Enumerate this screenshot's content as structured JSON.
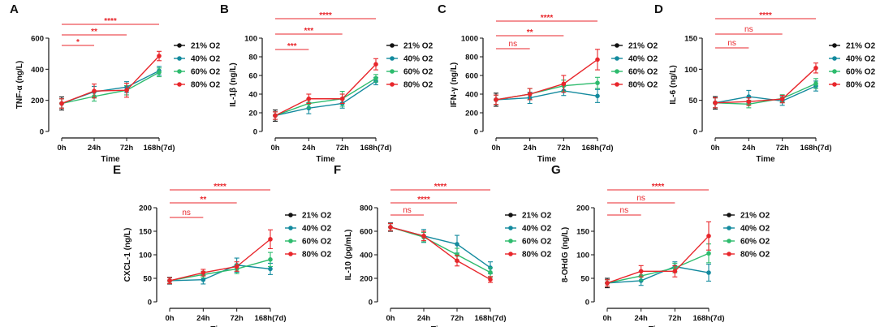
{
  "series_names": [
    "21% O2",
    "40% O2",
    "60% O2",
    "80% O2"
  ],
  "series_colors": [
    "#111111",
    "#138a9e",
    "#2dbb6d",
    "#e8262b"
  ],
  "sig_color": "#e8262b",
  "chart_data": [
    {
      "type": "line",
      "panel": "A",
      "ylabel": "TNF-α (ng/L)",
      "xlabel": "Time",
      "categories": [
        "0h",
        "24h",
        "72h",
        "168h(7d)"
      ],
      "ylim": [
        0,
        600
      ],
      "yticks": [
        0,
        200,
        400,
        600
      ],
      "series": [
        {
          "name": "21% O2",
          "values": [
            180,
            null,
            null,
            null
          ],
          "errors": [
            42,
            null,
            null,
            null
          ]
        },
        {
          "name": "40% O2",
          "values": [
            180,
            255,
            285,
            390
          ],
          "errors": [
            30,
            35,
            35,
            28
          ]
        },
        {
          "name": "60% O2",
          "values": [
            180,
            225,
            265,
            380
          ],
          "errors": [
            30,
            30,
            30,
            28
          ]
        },
        {
          "name": "80% O2",
          "values": [
            180,
            260,
            265,
            485
          ],
          "errors": [
            30,
            45,
            45,
            30
          ]
        }
      ],
      "significance": [
        {
          "from": 0,
          "to": 3,
          "label": "****"
        },
        {
          "from": 0,
          "to": 2,
          "label": "**"
        },
        {
          "from": 0,
          "to": 1,
          "label": "*"
        }
      ]
    },
    {
      "type": "line",
      "panel": "B",
      "ylabel": "IL-1β (ng/L)",
      "xlabel": "Time",
      "categories": [
        "0h",
        "24h",
        "72h",
        "168h(7d)"
      ],
      "ylim": [
        0,
        100
      ],
      "yticks": [
        0,
        20,
        40,
        60,
        80,
        100
      ],
      "series": [
        {
          "name": "21% O2",
          "values": [
            17,
            null,
            null,
            null
          ],
          "errors": [
            6,
            null,
            null,
            null
          ]
        },
        {
          "name": "40% O2",
          "values": [
            17,
            25,
            30,
            54
          ],
          "errors": [
            4,
            6,
            5,
            4
          ]
        },
        {
          "name": "60% O2",
          "values": [
            17,
            30,
            35,
            57
          ],
          "errors": [
            4,
            5,
            8,
            4
          ]
        },
        {
          "name": "80% O2",
          "values": [
            17,
            35,
            35,
            72
          ],
          "errors": [
            4,
            5,
            5,
            6
          ]
        }
      ],
      "significance": [
        {
          "from": 0,
          "to": 3,
          "label": "****"
        },
        {
          "from": 0,
          "to": 2,
          "label": "***"
        },
        {
          "from": 0,
          "to": 1,
          "label": "***"
        }
      ]
    },
    {
      "type": "line",
      "panel": "C",
      "ylabel": "IFN-γ (ng/L)",
      "xlabel": "Time",
      "categories": [
        "0h",
        "24h",
        "72h",
        "168h(7d)"
      ],
      "ylim": [
        0,
        1000
      ],
      "yticks": [
        0,
        200,
        400,
        600,
        800,
        1000
      ],
      "series": [
        {
          "name": "21% O2",
          "values": [
            340,
            null,
            null,
            null
          ],
          "errors": [
            70,
            null,
            null,
            null
          ]
        },
        {
          "name": "40% O2",
          "values": [
            340,
            360,
            435,
            380
          ],
          "errors": [
            50,
            60,
            50,
            70
          ]
        },
        {
          "name": "60% O2",
          "values": [
            340,
            400,
            490,
            520
          ],
          "errors": [
            50,
            60,
            60,
            60
          ]
        },
        {
          "name": "80% O2",
          "values": [
            340,
            400,
            510,
            770
          ],
          "errors": [
            50,
            60,
            90,
            110
          ]
        }
      ],
      "significance": [
        {
          "from": 0,
          "to": 3,
          "label": "****"
        },
        {
          "from": 0,
          "to": 2,
          "label": "**"
        },
        {
          "from": 0,
          "to": 1,
          "label": "ns"
        }
      ]
    },
    {
      "type": "line",
      "panel": "D",
      "ylabel": "IL-6 (ng/L)",
      "xlabel": "Time",
      "categories": [
        "0h",
        "24h",
        "72h",
        "168h(7d)"
      ],
      "ylim": [
        0,
        150
      ],
      "yticks": [
        0,
        50,
        100,
        150
      ],
      "series": [
        {
          "name": "21% O2",
          "values": [
            46,
            null,
            null,
            null
          ],
          "errors": [
            10,
            null,
            null,
            null
          ]
        },
        {
          "name": "40% O2",
          "values": [
            46,
            56,
            49,
            73
          ],
          "errors": [
            8,
            10,
            7,
            8
          ]
        },
        {
          "name": "60% O2",
          "values": [
            46,
            44,
            53,
            77
          ],
          "errors": [
            8,
            6,
            6,
            8
          ]
        },
        {
          "name": "80% O2",
          "values": [
            46,
            48,
            52,
            102
          ],
          "errors": [
            8,
            6,
            6,
            8
          ]
        }
      ],
      "significance": [
        {
          "from": 0,
          "to": 3,
          "label": "****"
        },
        {
          "from": 0,
          "to": 2,
          "label": "ns"
        },
        {
          "from": 0,
          "to": 1,
          "label": "ns"
        }
      ]
    },
    {
      "type": "line",
      "panel": "E",
      "ylabel": "CXCL-1 (ng/L)",
      "xlabel": "Time",
      "categories": [
        "0h",
        "24h",
        "72h",
        "168h(7d)"
      ],
      "ylim": [
        0,
        200
      ],
      "yticks": [
        0,
        50,
        100,
        150,
        200
      ],
      "series": [
        {
          "name": "21% O2",
          "values": [
            45,
            null,
            null,
            null
          ],
          "errors": [
            7,
            null,
            null,
            null
          ]
        },
        {
          "name": "40% O2",
          "values": [
            45,
            47,
            78,
            70
          ],
          "errors": [
            6,
            9,
            15,
            12
          ]
        },
        {
          "name": "60% O2",
          "values": [
            45,
            58,
            70,
            90
          ],
          "errors": [
            6,
            7,
            10,
            15
          ]
        },
        {
          "name": "80% O2",
          "values": [
            45,
            62,
            75,
            133
          ],
          "errors": [
            6,
            7,
            10,
            20
          ]
        }
      ],
      "significance": [
        {
          "from": 0,
          "to": 3,
          "label": "****"
        },
        {
          "from": 0,
          "to": 2,
          "label": "**"
        },
        {
          "from": 0,
          "to": 1,
          "label": "ns"
        }
      ]
    },
    {
      "type": "line",
      "panel": "F",
      "ylabel": "IL-10 (pg/mL)",
      "xlabel": "Time",
      "categories": [
        "0h",
        "24h",
        "72h",
        "168h(7d)"
      ],
      "ylim": [
        0,
        800
      ],
      "yticks": [
        0,
        200,
        400,
        600,
        800
      ],
      "series": [
        {
          "name": "21% O2",
          "values": [
            635,
            null,
            null,
            null
          ],
          "errors": [
            35,
            null,
            null,
            null
          ]
        },
        {
          "name": "40% O2",
          "values": [
            635,
            560,
            490,
            290
          ],
          "errors": [
            30,
            55,
            75,
            50
          ]
        },
        {
          "name": "60% O2",
          "values": [
            635,
            550,
            400,
            250
          ],
          "errors": [
            30,
            40,
            55,
            40
          ]
        },
        {
          "name": "80% O2",
          "values": [
            635,
            560,
            350,
            190
          ],
          "errors": [
            30,
            40,
            45,
            25
          ]
        }
      ],
      "significance": [
        {
          "from": 0,
          "to": 3,
          "label": "****"
        },
        {
          "from": 0,
          "to": 2,
          "label": "****"
        },
        {
          "from": 0,
          "to": 1,
          "label": "ns"
        }
      ]
    },
    {
      "type": "line",
      "panel": "G",
      "ylabel": "8-OHdG (ng/L)",
      "xlabel": "Time",
      "categories": [
        "0h",
        "24h",
        "72h",
        "168h(7d)"
      ],
      "ylim": [
        0,
        200
      ],
      "yticks": [
        0,
        50,
        100,
        150,
        200
      ],
      "series": [
        {
          "name": "21% O2",
          "values": [
            40,
            null,
            null,
            null
          ],
          "errors": [
            10,
            null,
            null,
            null
          ]
        },
        {
          "name": "40% O2",
          "values": [
            40,
            45,
            75,
            62
          ],
          "errors": [
            7,
            10,
            10,
            18
          ]
        },
        {
          "name": "60% O2",
          "values": [
            40,
            55,
            72,
            103
          ],
          "errors": [
            7,
            10,
            10,
            20
          ]
        },
        {
          "name": "80% O2",
          "values": [
            40,
            65,
            65,
            140
          ],
          "errors": [
            7,
            12,
            12,
            30
          ]
        }
      ],
      "significance": [
        {
          "from": 0,
          "to": 3,
          "label": "****"
        },
        {
          "from": 0,
          "to": 2,
          "label": "ns"
        },
        {
          "from": 0,
          "to": 1,
          "label": "ns"
        }
      ]
    }
  ]
}
